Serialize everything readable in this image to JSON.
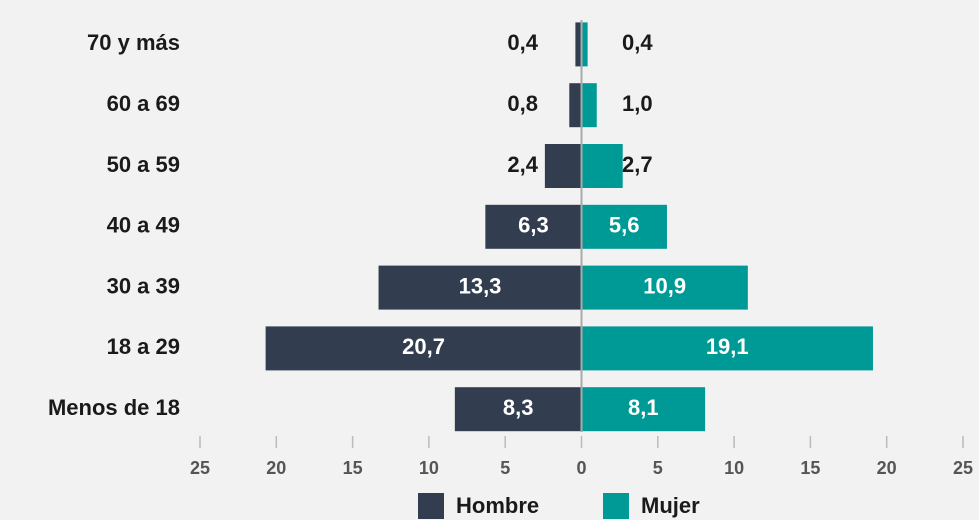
{
  "chart_data": {
    "type": "pyramid",
    "categories": [
      "70 y más",
      "60 a 69",
      "50 a 59",
      "40 a 49",
      "30 a 39",
      "18 a 29",
      "Menos de 18"
    ],
    "series": [
      {
        "name": "Hombre",
        "color": "#323e50",
        "values": [
          0.4,
          0.8,
          2.4,
          6.3,
          13.3,
          20.7,
          8.3
        ],
        "value_labels": [
          "0,4",
          "0,8",
          "2,4",
          "6,3",
          "13,3",
          "20,7",
          "8,3"
        ]
      },
      {
        "name": "Mujer",
        "color": "#009a96",
        "values": [
          0.4,
          1.0,
          2.7,
          5.6,
          10.9,
          19.1,
          8.1
        ],
        "value_labels": [
          "0,4",
          "1,0",
          "2,7",
          "5,6",
          "10,9",
          "19,1",
          "8,1"
        ]
      }
    ],
    "xlim": [
      -25,
      25
    ],
    "xticks": [
      {
        "value": -25,
        "label": "25"
      },
      {
        "value": -20,
        "label": "20"
      },
      {
        "value": -15,
        "label": "15"
      },
      {
        "value": -10,
        "label": "10"
      },
      {
        "value": -5,
        "label": "5"
      },
      0,
      5,
      10,
      15,
      20,
      25
    ]
  }
}
